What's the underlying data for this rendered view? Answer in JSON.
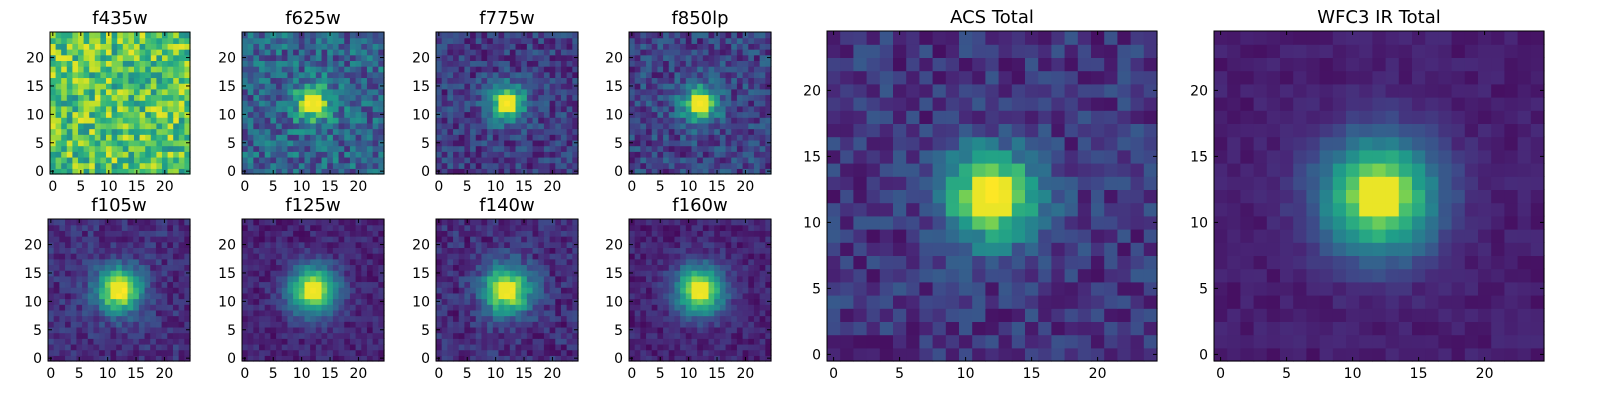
{
  "figure": {
    "colormap": "viridis",
    "colormap_stops": [
      "#440154",
      "#482878",
      "#3e4989",
      "#31688e",
      "#26828e",
      "#1f9e89",
      "#35b779",
      "#6ece58",
      "#b5de2b",
      "#fde725"
    ]
  },
  "chart_data": [
    {
      "type": "heatmap",
      "title": "f435w",
      "grid_size": 25,
      "extent": [
        -0.5,
        24.5
      ],
      "center": [
        12,
        12
      ],
      "source_sigma": 2.5,
      "peak_level": 0.0,
      "background_level": 0.72,
      "noise_level": 0.25,
      "noise_seed": 11,
      "xticks": [
        "0",
        "5",
        "10",
        "15",
        "20"
      ],
      "yticks": [
        "0",
        "5",
        "10",
        "15",
        "20"
      ],
      "xlabel": "",
      "ylabel": "",
      "grid": false
    },
    {
      "type": "heatmap",
      "title": "f625w",
      "grid_size": 25,
      "extent": [
        -0.5,
        24.5
      ],
      "center": [
        12,
        12
      ],
      "source_sigma": 2.3,
      "peak_level": 0.62,
      "background_level": 0.32,
      "noise_level": 0.2,
      "noise_seed": 23,
      "xticks": [
        "0",
        "5",
        "10",
        "15",
        "20"
      ],
      "yticks": [
        "0",
        "5",
        "10",
        "15",
        "20"
      ],
      "xlabel": "",
      "ylabel": "",
      "grid": false
    },
    {
      "type": "heatmap",
      "title": "f775w",
      "grid_size": 25,
      "extent": [
        -0.5,
        24.5
      ],
      "center": [
        12,
        12
      ],
      "source_sigma": 2.3,
      "peak_level": 0.72,
      "background_level": 0.18,
      "noise_level": 0.14,
      "noise_seed": 37,
      "xticks": [
        "0",
        "5",
        "10",
        "15",
        "20"
      ],
      "yticks": [
        "0",
        "5",
        "10",
        "15",
        "20"
      ],
      "xlabel": "",
      "ylabel": "",
      "grid": false
    },
    {
      "type": "heatmap",
      "title": "f850lp",
      "grid_size": 25,
      "extent": [
        -0.5,
        24.5
      ],
      "center": [
        12,
        12
      ],
      "source_sigma": 2.3,
      "peak_level": 0.72,
      "background_level": 0.2,
      "noise_level": 0.15,
      "noise_seed": 41,
      "xticks": [
        "0",
        "5",
        "10",
        "15",
        "20"
      ],
      "yticks": [
        "0",
        "5",
        "10",
        "15",
        "20"
      ],
      "xlabel": "",
      "ylabel": "",
      "grid": false
    },
    {
      "type": "heatmap",
      "title": "f105w",
      "grid_size": 25,
      "extent": [
        -0.5,
        24.5
      ],
      "center": [
        12,
        12
      ],
      "source_sigma": 2.8,
      "peak_level": 0.85,
      "background_level": 0.14,
      "noise_level": 0.1,
      "noise_seed": 53,
      "xticks": [
        "0",
        "5",
        "10",
        "15",
        "20"
      ],
      "yticks": [
        "0",
        "5",
        "10",
        "15",
        "20"
      ],
      "xlabel": "",
      "ylabel": "",
      "grid": false
    },
    {
      "type": "heatmap",
      "title": "f125w",
      "grid_size": 25,
      "extent": [
        -0.5,
        24.5
      ],
      "center": [
        12,
        12
      ],
      "source_sigma": 3.0,
      "peak_level": 0.85,
      "background_level": 0.1,
      "noise_level": 0.08,
      "noise_seed": 61,
      "xticks": [
        "0",
        "5",
        "10",
        "15",
        "20"
      ],
      "yticks": [
        "0",
        "5",
        "10",
        "15",
        "20"
      ],
      "xlabel": "",
      "ylabel": "",
      "grid": false
    },
    {
      "type": "heatmap",
      "title": "f140w",
      "grid_size": 25,
      "extent": [
        -0.5,
        24.5
      ],
      "center": [
        12,
        12
      ],
      "source_sigma": 3.0,
      "peak_level": 0.85,
      "background_level": 0.13,
      "noise_level": 0.11,
      "noise_seed": 73,
      "xticks": [
        "0",
        "5",
        "10",
        "15",
        "20"
      ],
      "yticks": [
        "0",
        "5",
        "10",
        "15",
        "20"
      ],
      "xlabel": "",
      "ylabel": "",
      "grid": false
    },
    {
      "type": "heatmap",
      "title": "f160w",
      "grid_size": 25,
      "extent": [
        -0.5,
        24.5
      ],
      "center": [
        12,
        12
      ],
      "source_sigma": 3.0,
      "peak_level": 0.85,
      "background_level": 0.1,
      "noise_level": 0.08,
      "noise_seed": 89,
      "xticks": [
        "0",
        "5",
        "10",
        "15",
        "20"
      ],
      "yticks": [
        "0",
        "5",
        "10",
        "15",
        "20"
      ],
      "xlabel": "",
      "ylabel": "",
      "grid": false
    },
    {
      "type": "heatmap",
      "title": "ACS Total",
      "grid_size": 25,
      "extent": [
        -0.5,
        24.5
      ],
      "center": [
        12,
        12
      ],
      "source_sigma": 2.4,
      "peak_level": 0.85,
      "background_level": 0.16,
      "noise_level": 0.12,
      "noise_seed": 97,
      "xticks": [
        "0",
        "5",
        "10",
        "15",
        "20"
      ],
      "yticks": [
        "0",
        "5",
        "10",
        "15",
        "20"
      ],
      "xlabel": "",
      "ylabel": "",
      "grid": false
    },
    {
      "type": "heatmap",
      "title": "WFC3 IR Total",
      "grid_size": 25,
      "extent": [
        -0.5,
        24.5
      ],
      "center": [
        12,
        12
      ],
      "source_sigma": 3.1,
      "peak_level": 0.85,
      "background_level": 0.08,
      "noise_level": 0.04,
      "noise_seed": 103,
      "xticks": [
        "0",
        "5",
        "10",
        "15",
        "20"
      ],
      "yticks": [
        "0",
        "5",
        "10",
        "15",
        "20"
      ],
      "xlabel": "",
      "ylabel": "",
      "grid": false
    }
  ]
}
